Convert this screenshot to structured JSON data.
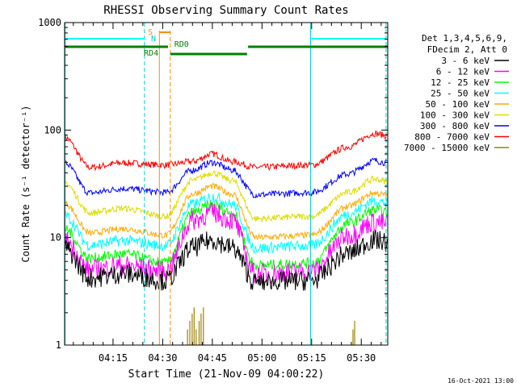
{
  "chart_data": {
    "type": "line",
    "title": "RHESSI Observing Summary Count Rates",
    "xlabel": "Start Time (21-Nov-09 04:00:22)",
    "ylabel": "Count Rate (s⁻¹ detector⁻¹)",
    "y_scale": "log",
    "ylim": [
      1,
      1000
    ],
    "xlim_minutes": [
      0.37,
      98.0
    ],
    "y_ticks": [
      {
        "v": 1,
        "label": "1"
      },
      {
        "v": 10,
        "label": "10"
      },
      {
        "v": 100,
        "label": "100"
      },
      {
        "v": 1000,
        "label": "1000"
      }
    ],
    "x_ticks": [
      {
        "v": 15,
        "label": "04:15"
      },
      {
        "v": 30,
        "label": "04:30"
      },
      {
        "v": 45,
        "label": "04:45"
      },
      {
        "v": 60,
        "label": "05:00"
      },
      {
        "v": 75,
        "label": "05:15"
      },
      {
        "v": 90,
        "label": "05:30"
      }
    ],
    "legend_header": [
      "Det 1,3,4,5,6,9,",
      "FDecim 2, Att 0"
    ],
    "legend_placement": "right",
    "series": [
      {
        "name": "3 - 6 keV",
        "color": "#000000",
        "base": [
          4.2,
          9.5,
          3.8,
          9.5,
          3.8,
          9.5
        ]
      },
      {
        "name": "6 - 12 keV",
        "color": "#ff00ff",
        "base": [
          5.0,
          17,
          4.6,
          17,
          4.6,
          14
        ]
      },
      {
        "name": "12 - 25 keV",
        "color": "#00ff00",
        "base": [
          6.4,
          20,
          5.5,
          20,
          5.5,
          18
        ]
      },
      {
        "name": "25 - 50 keV",
        "color": "#00ffff",
        "base": [
          8.5,
          24,
          8.0,
          24,
          8.0,
          22
        ]
      },
      {
        "name": "50 - 100 keV",
        "color": "#ffaa00",
        "base": [
          11,
          30,
          10,
          30,
          10,
          26
        ]
      },
      {
        "name": "100 - 300 keV",
        "color": "#dddd00",
        "base": [
          17,
          40,
          15,
          40,
          15,
          35
        ]
      },
      {
        "name": "300 - 800 keV",
        "color": "#0000ff",
        "base": [
          26,
          50,
          25,
          50,
          25,
          52
        ]
      },
      {
        "name": "800 - 7000 keV",
        "color": "#ff0000",
        "base": [
          45,
          60,
          45,
          62,
          45,
          93
        ]
      },
      {
        "name": "7000 - 15000 keV",
        "color": "#a08000",
        "base": [
          1,
          1,
          1,
          1,
          1,
          1
        ]
      }
    ],
    "annotations": {
      "N_label": "N",
      "S_label": "S",
      "RD0_label": "RD0",
      "RD4_label": "RD4"
    },
    "timestamp": "16-Oct-2021 13:00"
  }
}
